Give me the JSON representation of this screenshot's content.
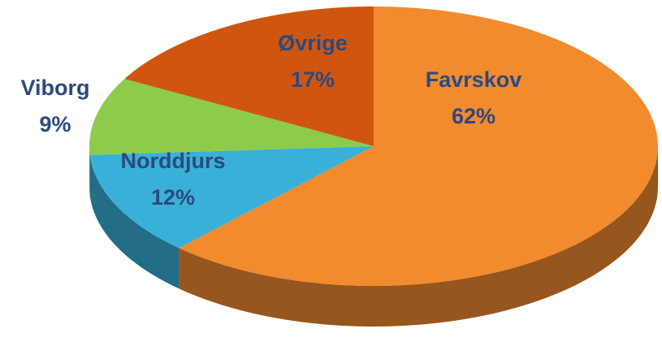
{
  "chart_data": {
    "type": "pie",
    "categories": [
      "Favrskov",
      "Norddjurs",
      "Viborg",
      "Øvrige"
    ],
    "values": [
      62,
      12,
      9,
      17
    ],
    "value_labels": [
      "62%",
      "12%",
      "9%",
      "17%"
    ],
    "colors": [
      "#f28a2e",
      "#3ab0d8",
      "#8dcc4a",
      "#d0560f"
    ]
  }
}
